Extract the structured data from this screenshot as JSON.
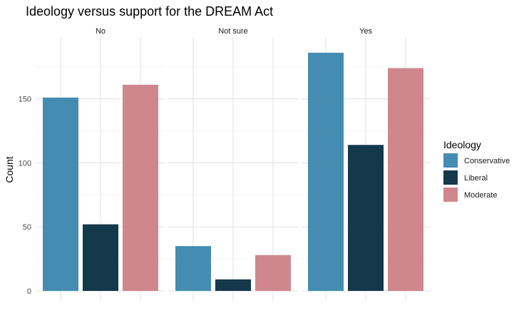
{
  "chart_data": {
    "type": "bar",
    "title": "Ideology versus support for the DREAM Act",
    "ylabel": "Count",
    "xlabel": "",
    "ylim": [
      0,
      196
    ],
    "yticks": [
      0,
      50,
      100,
      150
    ],
    "grid": true,
    "facets": [
      "No",
      "Not sure",
      "Yes"
    ],
    "legend": {
      "title": "Ideology",
      "position": "right"
    },
    "series": [
      {
        "name": "Conservative",
        "color": "#458CB3",
        "values": [
          151,
          35,
          186
        ]
      },
      {
        "name": "Liberal",
        "color": "#13394B",
        "values": [
          52,
          9,
          114
        ]
      },
      {
        "name": "Moderate",
        "color": "#CF878D",
        "values": [
          161,
          28,
          174
        ]
      }
    ]
  }
}
